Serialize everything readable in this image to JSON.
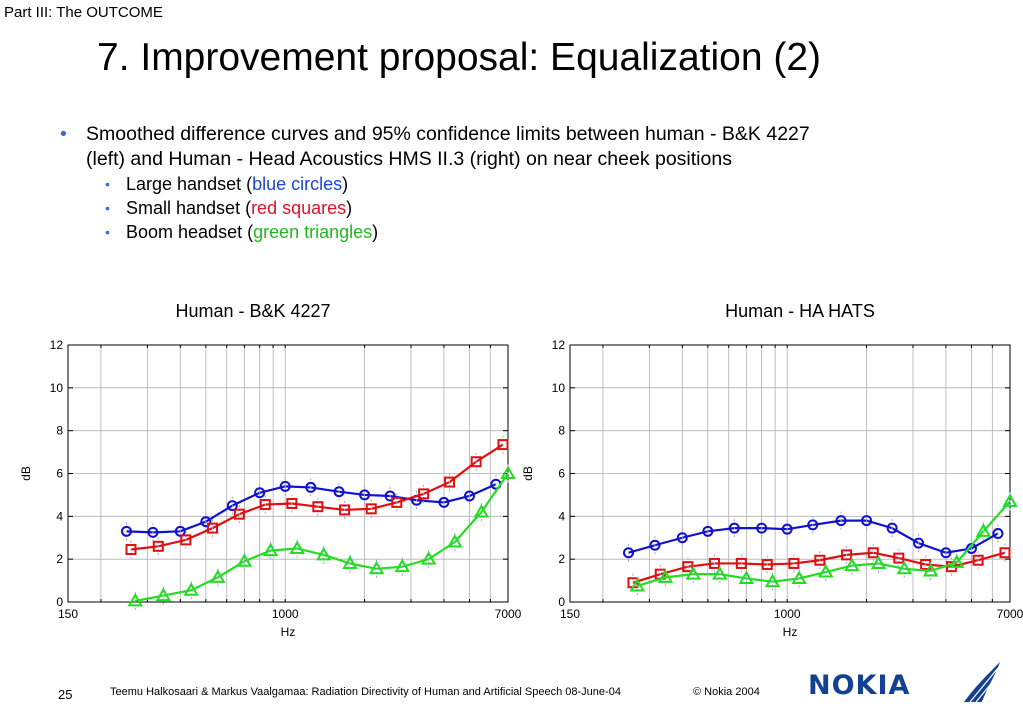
{
  "header": {
    "section_label": "Part III: The OUTCOME",
    "title": "7. Improvement proposal: Equalization (2)"
  },
  "bullets": {
    "main_line1": "Smoothed difference curves and 95% confidence limits between human - B&K 4227",
    "main_line2": "(left) and Human - Head Acoustics HMS II.3 (right) on  near cheek positions",
    "items": [
      {
        "prefix": "Large handset (",
        "colored": "blue circles",
        "suffix": ")"
      },
      {
        "prefix": "Small handset (",
        "colored": "red squares",
        "suffix": ")"
      },
      {
        "prefix": "Boom headset (",
        "colored": "green triangles",
        "suffix": ")"
      }
    ]
  },
  "footer": {
    "page_number": "25",
    "citation": "Teemu Halkosaari & Markus Vaalgamaa: Radiation Directivity of Human and Artificial Speech  08-June-04",
    "copyright": "© Nokia 2004",
    "logo_text": "NOKIA"
  },
  "colors": {
    "blue": "#1010d0",
    "red": "#e01010",
    "green": "#22dd22",
    "grid": "#b0b0b0"
  },
  "chart_data": [
    {
      "type": "line",
      "title": "Human - B&K 4227",
      "xlabel": "Hz",
      "ylabel": "dB",
      "x_scale": "log",
      "xlim": [
        150,
        7000
      ],
      "ylim": [
        0,
        12
      ],
      "xticks": [
        150,
        1000,
        7000
      ],
      "yticks": [
        0,
        2,
        4,
        6,
        8,
        10,
        12
      ],
      "grid": true,
      "series": [
        {
          "marker": "circle",
          "color": "#1010d0",
          "x": [
            250,
            315,
            400,
            500,
            630,
            800,
            1000,
            1250,
            1600,
            2000,
            2500,
            3150,
            4000,
            5000,
            6300
          ],
          "y": [
            3.3,
            3.25,
            3.3,
            3.75,
            4.5,
            5.1,
            5.4,
            5.35,
            5.15,
            5.0,
            4.95,
            4.75,
            4.65,
            4.95,
            5.5
          ]
        },
        {
          "marker": "square",
          "color": "#e01010",
          "x": [
            260,
            330,
            420,
            530,
            670,
            840,
            1060,
            1330,
            1680,
            2120,
            2650,
            3350,
            4200,
            5300,
            6700
          ],
          "y": [
            2.45,
            2.6,
            2.9,
            3.45,
            4.1,
            4.55,
            4.6,
            4.45,
            4.3,
            4.35,
            4.65,
            5.05,
            5.6,
            6.55,
            7.35
          ]
        },
        {
          "marker": "triangle",
          "color": "#22dd22",
          "x": [
            270,
            345,
            440,
            555,
            700,
            880,
            1110,
            1400,
            1760,
            2220,
            2780,
            3500,
            4400,
            5550,
            7000
          ],
          "y": [
            0.05,
            0.3,
            0.55,
            1.15,
            1.9,
            2.4,
            2.5,
            2.2,
            1.8,
            1.55,
            1.65,
            2.0,
            2.8,
            4.2,
            6.0
          ]
        }
      ]
    },
    {
      "type": "line",
      "title": "Human - HA HATS",
      "xlabel": "Hz",
      "ylabel": "dB",
      "x_scale": "log",
      "xlim": [
        150,
        7000
      ],
      "ylim": [
        0,
        12
      ],
      "xticks": [
        150,
        1000,
        7000
      ],
      "yticks": [
        0,
        2,
        4,
        6,
        8,
        10,
        12
      ],
      "grid": true,
      "series": [
        {
          "marker": "circle",
          "color": "#1010d0",
          "x": [
            250,
            315,
            400,
            500,
            630,
            800,
            1000,
            1250,
            1600,
            2000,
            2500,
            3150,
            4000,
            5000,
            6300
          ],
          "y": [
            2.3,
            2.65,
            3.0,
            3.3,
            3.45,
            3.45,
            3.4,
            3.6,
            3.8,
            3.8,
            3.45,
            2.75,
            2.3,
            2.5,
            3.2
          ]
        },
        {
          "marker": "square",
          "color": "#e01010",
          "x": [
            260,
            330,
            420,
            530,
            670,
            840,
            1060,
            1330,
            1680,
            2120,
            2650,
            3350,
            4200,
            5300,
            6700
          ],
          "y": [
            0.9,
            1.3,
            1.65,
            1.8,
            1.8,
            1.75,
            1.8,
            1.95,
            2.2,
            2.3,
            2.05,
            1.75,
            1.65,
            1.95,
            2.3
          ]
        },
        {
          "marker": "triangle",
          "color": "#22dd22",
          "x": [
            270,
            345,
            440,
            555,
            700,
            880,
            1110,
            1400,
            1760,
            2220,
            2780,
            3500,
            4400,
            5550,
            7000
          ],
          "y": [
            0.75,
            1.15,
            1.3,
            1.3,
            1.1,
            0.95,
            1.1,
            1.4,
            1.7,
            1.8,
            1.55,
            1.45,
            1.85,
            3.3,
            4.7
          ]
        }
      ]
    }
  ]
}
